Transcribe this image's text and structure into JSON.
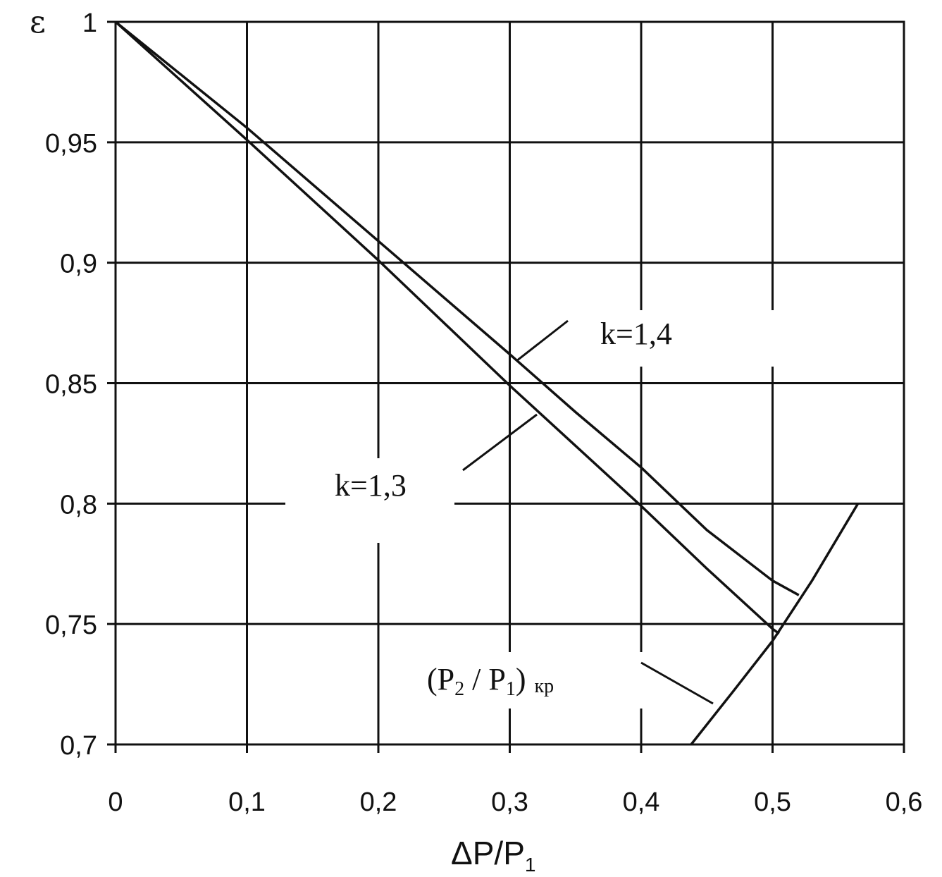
{
  "chart_data": {
    "type": "line",
    "xlabel": "ΔP/P1",
    "ylabel": "ε",
    "xlim": [
      0,
      0.6
    ],
    "ylim": [
      0.7,
      1.0
    ],
    "grid": true,
    "x_ticks": [
      "0",
      "0,1",
      "0,2",
      "0,3",
      "0,4",
      "0,5",
      "0,6"
    ],
    "y_ticks": [
      "0,7",
      "0,75",
      "0,8",
      "0,85",
      "0,9",
      "0,95",
      "1"
    ],
    "series": [
      {
        "name": "k=1,4",
        "x": [
          0,
          0.1,
          0.2,
          0.3,
          0.35,
          0.4,
          0.45,
          0.5,
          0.52
        ],
        "y": [
          1.0,
          0.956,
          0.909,
          0.862,
          0.838,
          0.815,
          0.789,
          0.768,
          0.762
        ]
      },
      {
        "name": "k=1,3",
        "x": [
          0,
          0.1,
          0.2,
          0.3,
          0.35,
          0.4,
          0.45,
          0.5,
          0.505
        ],
        "y": [
          1.0,
          0.951,
          0.901,
          0.849,
          0.824,
          0.799,
          0.773,
          0.748,
          0.746
        ]
      },
      {
        "name": "(P2 / P1) кр",
        "x": [
          0.438,
          0.47,
          0.5,
          0.53,
          0.565
        ],
        "y": [
          0.7,
          0.722,
          0.743,
          0.768,
          0.8
        ]
      }
    ]
  },
  "labels": {
    "y_symbol": "ε",
    "x_title_main": "ΔP/P",
    "x_title_sub": "1",
    "k14": "k=1,4",
    "k13": "k=1,3",
    "crit_open": "(P",
    "crit_sub2": "2",
    "crit_mid": " / P",
    "crit_sub1": "1",
    "crit_close": ")",
    "crit_kr": "кр"
  }
}
